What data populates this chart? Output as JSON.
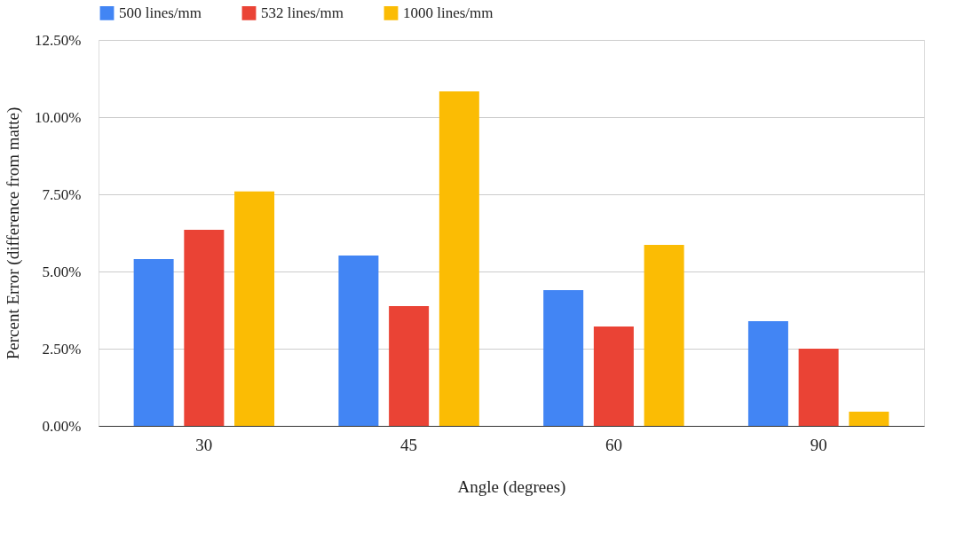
{
  "chart_data": {
    "type": "bar",
    "xlabel": "Angle (degrees)",
    "ylabel": "Percent Error (difference from matte)",
    "categories": [
      "30",
      "45",
      "60",
      "90"
    ],
    "series": [
      {
        "name": "500 lines/mm",
        "color": "#4285f4",
        "values": [
          5.4,
          5.52,
          4.4,
          3.39
        ]
      },
      {
        "name": "532 lines/mm",
        "color": "#ea4335",
        "values": [
          6.35,
          3.88,
          3.22,
          2.5
        ]
      },
      {
        "name": "1000 lines/mm",
        "color": "#fbbc04",
        "values": [
          7.59,
          10.83,
          5.86,
          0.46
        ]
      }
    ],
    "ylim": [
      0,
      12.5
    ],
    "yticks": [
      {
        "value": 0,
        "label": "0.00%"
      },
      {
        "value": 2.5,
        "label": "2.50%"
      },
      {
        "value": 5,
        "label": "5.00%"
      },
      {
        "value": 7.5,
        "label": "7.50%"
      },
      {
        "value": 10,
        "label": "10.00%"
      },
      {
        "value": 12.5,
        "label": "12.50%"
      }
    ],
    "grid": "y",
    "legend": "top"
  }
}
